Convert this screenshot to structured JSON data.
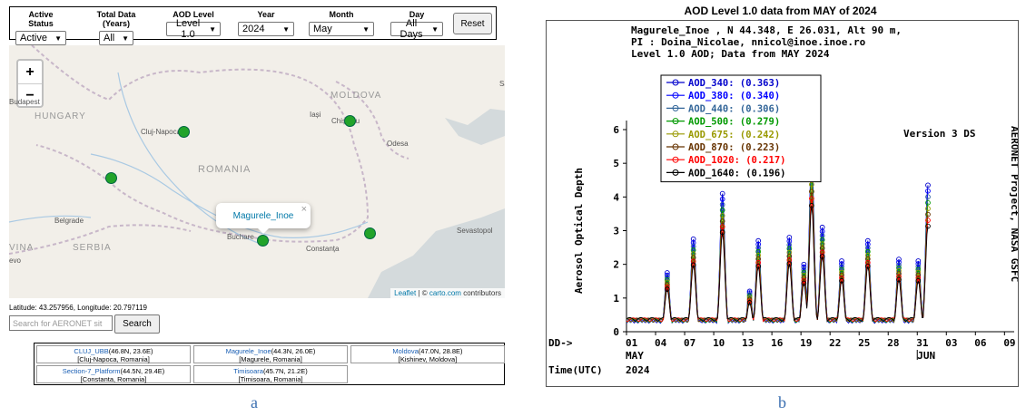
{
  "filters": {
    "groups": [
      {
        "label": "Active Status",
        "value": "Active"
      },
      {
        "label": "Total Data (Years)",
        "value": "All"
      },
      {
        "label": "AOD Level",
        "value": "Level 1.0"
      },
      {
        "label": "Year",
        "value": "2024"
      },
      {
        "label": "Month",
        "value": "May"
      },
      {
        "label": "Day",
        "value": "All Days"
      }
    ],
    "reset_label": "Reset"
  },
  "map": {
    "zoom_in": "+",
    "zoom_out": "−",
    "places": {
      "hungary": "HUNGARY",
      "moldova": "MOLDOVA",
      "romania": "ROMANIA",
      "serbia": "SERBIA",
      "budapest": "Budapest",
      "cluj": "Cluj-Napoca",
      "iasi": "Iași",
      "chisinau": "Chișinău",
      "odesa": "Odesa",
      "belgrade": "Belgrade",
      "bucharest": "Buchare",
      "constanta": "Constanța",
      "sevastopol": "Sevastopol",
      "vina": "VINA",
      "evo": "evo",
      "edge_sa": "Sa"
    },
    "popup_label": "Magurele_Inoe",
    "popup_close": "×",
    "attribution": {
      "leaflet": "Leaflet",
      "sep": " | © ",
      "carto": "carto.com",
      "rest": " contributors"
    }
  },
  "coords_text": "Latitude: 43.257956, Longitude: 20.797119",
  "search": {
    "placeholder": "Search for AERONET sit",
    "button": "Search"
  },
  "sites": [
    {
      "name": "CLUJ_UBB",
      "coord": "(46.8N, 23.6E)",
      "place": "[Cluj-Napoca, Romania]"
    },
    {
      "name": "Magurele_Inoe",
      "coord": "(44.3N, 26.0E)",
      "place": "[Magurele, Romania]"
    },
    {
      "name": "Moldova",
      "coord": "(47.0N, 28.8E)",
      "place": "[Kishinev, Moldova]"
    },
    {
      "name": "Section-7_Platform",
      "coord": "(44.5N, 29.4E)",
      "place": "[Constanta, Romania]"
    },
    {
      "name": "Timisoara",
      "coord": "(45.7N, 21.2E)",
      "place": "[Timisoara, Romania]"
    }
  ],
  "caption_a": "a",
  "caption_b": "b",
  "chart_title": "AOD Level 1.0 data from MAY of 2024",
  "chart_header": [
    "Magurele_Inoe , N 44.348, E  26.031, Alt 90 m,",
    "PI : Doina_Nicolae, nnicol@inoe.inoe.ro",
    "Level 1.0 AOD; Data from MAY 2024"
  ],
  "version_label": "Version 3 DS",
  "right_label": "AERONET Project, NASA GSFC",
  "dd_label": "DD->",
  "time_label": "Time(UTC)",
  "month_may": "MAY",
  "month_jun": "JUN",
  "year_label": "2024",
  "chart_data": {
    "type": "line",
    "title": "AOD Level 1.0 data from MAY of 2024",
    "ylabel": "Aerosol Optical Depth",
    "xlabel": "DD->",
    "ylim": [
      0,
      6
    ],
    "yticks": [
      0,
      1,
      2,
      3,
      4,
      5,
      6
    ],
    "xlim": [
      0,
      40
    ],
    "xticks": [
      "01",
      "04",
      "07",
      "10",
      "13",
      "16",
      "19",
      "22",
      "25",
      "28",
      "31",
      "03",
      "06",
      "09"
    ],
    "series": [
      {
        "name": "AOD_340",
        "mean": "(0.363)",
        "color": "#0000cc"
      },
      {
        "name": "AOD_380",
        "mean": "(0.340)",
        "color": "#0000ff"
      },
      {
        "name": "AOD_440",
        "mean": "(0.306)",
        "color": "#336699"
      },
      {
        "name": "AOD_500",
        "mean": "(0.279)",
        "color": "#009900"
      },
      {
        "name": "AOD_675",
        "mean": "(0.242)",
        "color": "#999900"
      },
      {
        "name": "AOD_870",
        "mean": "(0.223)",
        "color": "#663300"
      },
      {
        "name": "AOD_1020",
        "mean": "(0.217)",
        "color": "#ff0000"
      },
      {
        "name": "AOD_1640",
        "mean": "(0.196)",
        "color": "#000000"
      }
    ],
    "peaks": [
      {
        "day": 4.2,
        "value": 1.75
      },
      {
        "day": 6.9,
        "value": 2.75
      },
      {
        "day": 9.9,
        "value": 4.1
      },
      {
        "day": 12.7,
        "value": 1.2
      },
      {
        "day": 13.6,
        "value": 2.7
      },
      {
        "day": 16.8,
        "value": 2.8
      },
      {
        "day": 18.3,
        "value": 2.0
      },
      {
        "day": 19.1,
        "value": 5.2
      },
      {
        "day": 20.2,
        "value": 3.1
      },
      {
        "day": 22.2,
        "value": 2.1
      },
      {
        "day": 24.9,
        "value": 2.7
      },
      {
        "day": 28.1,
        "value": 2.15
      },
      {
        "day": 30.1,
        "value": 2.1
      },
      {
        "day": 31.1,
        "value": 4.35
      }
    ]
  }
}
